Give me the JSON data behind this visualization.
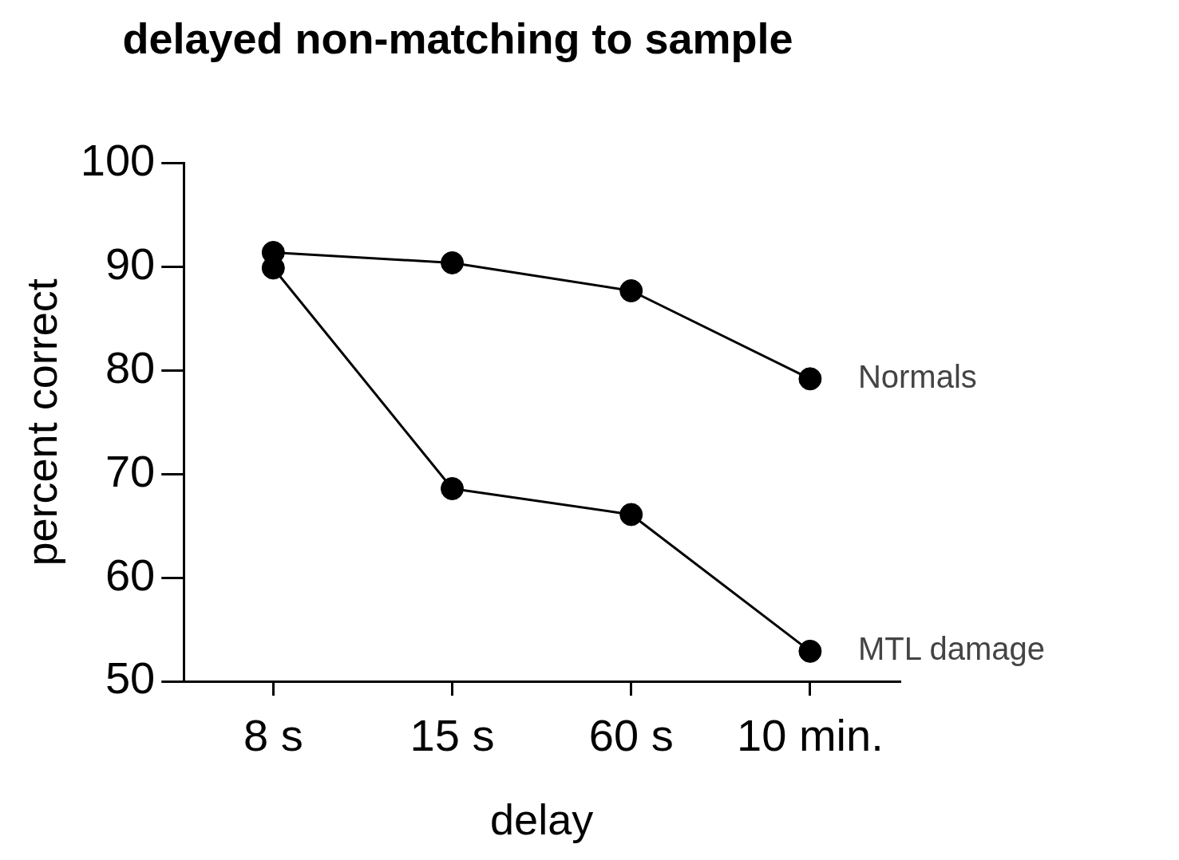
{
  "chart_data": {
    "type": "line",
    "title": "delayed non-matching to sample",
    "xlabel": "delay",
    "ylabel": "percent correct",
    "categories": [
      "8 s",
      "15 s",
      "60 s",
      "10 min."
    ],
    "series": [
      {
        "name": "Normals",
        "color": "#000000",
        "values": [
          91.4,
          90.4,
          87.7,
          79.2
        ]
      },
      {
        "name": "MTL damage",
        "color": "#000000",
        "values": [
          89.9,
          68.6,
          66.1,
          52.9
        ]
      }
    ],
    "ylim": [
      50,
      100
    ],
    "yticks": [
      50,
      60,
      70,
      80,
      90,
      100
    ],
    "grid": false,
    "legend": false,
    "marker": "circle",
    "line_style": "solid"
  }
}
